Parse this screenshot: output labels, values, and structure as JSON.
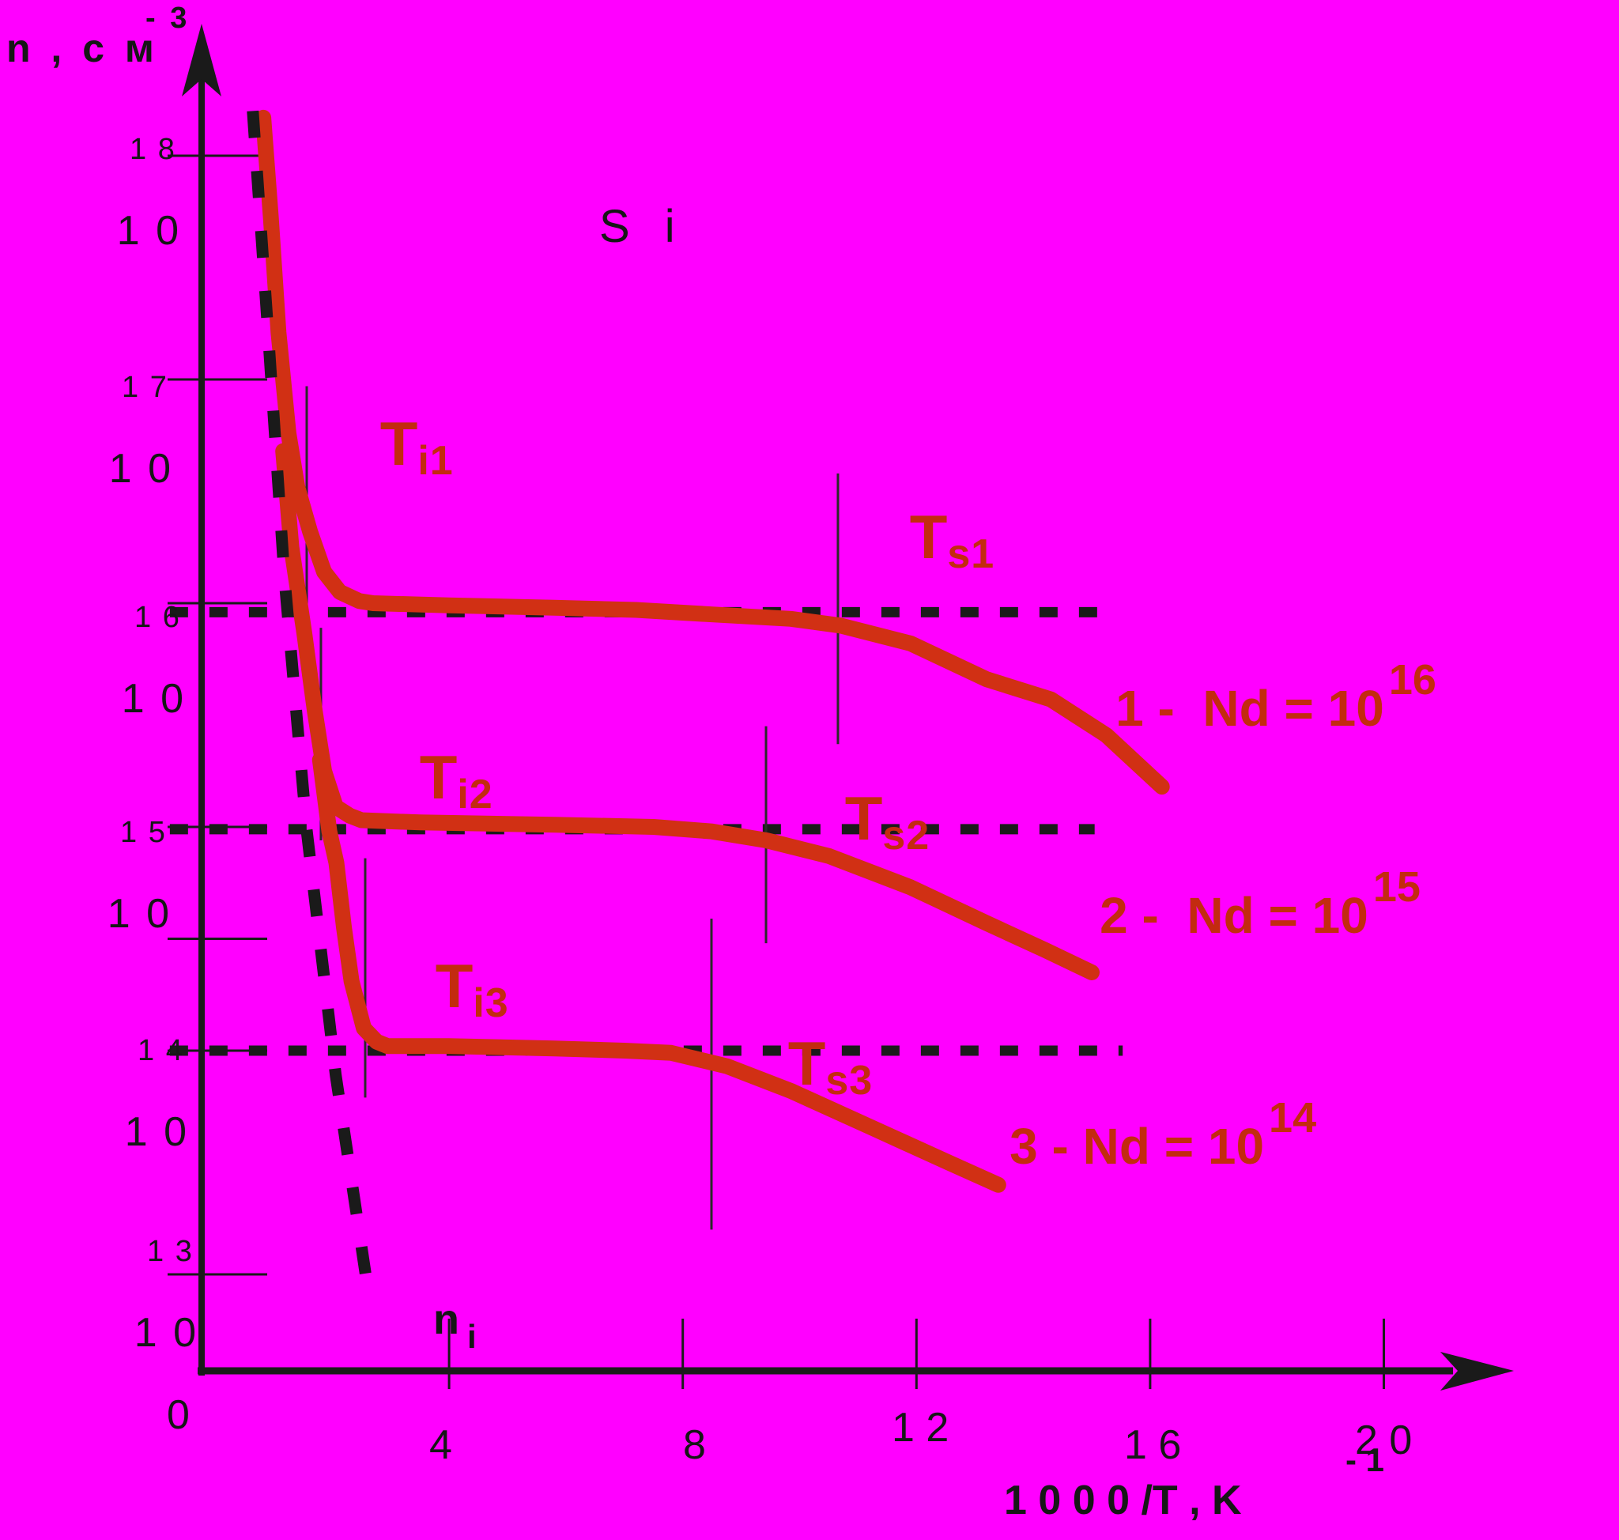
{
  "colors": {
    "background": "#ff00ff",
    "curve_red": "#d13014",
    "annotation_red": "#c32b10",
    "axis_black": "#1a1a1a"
  },
  "title": {
    "text": "S i"
  },
  "y_axis": {
    "title": {
      "main": "n , с м",
      "sup": "- 3"
    },
    "ticks": [
      {
        "base": "1 0",
        "sup": "1 8"
      },
      {
        "base": "1 0",
        "sup": "1 7"
      },
      {
        "base": "1 0",
        "sup": "1 6"
      },
      {
        "base": "1 0",
        "sup": "1 5"
      },
      {
        "base": "1 0",
        "sup": "1 4"
      },
      {
        "base": "1 0",
        "sup": "1 3"
      }
    ]
  },
  "x_axis": {
    "title": {
      "main": "1 0 0 0 /T , K",
      "sup": "- 1"
    },
    "origin": "0",
    "ticks": [
      "4",
      "8",
      "1 2",
      "1 6",
      "2 0"
    ]
  },
  "intrinsic_label": {
    "main": "n",
    "sub": "i"
  },
  "markers": [
    {
      "main": "T",
      "sub": "i1"
    },
    {
      "main": "T",
      "sub": "i2"
    },
    {
      "main": "T",
      "sub": "i3"
    },
    {
      "main": "T",
      "sub": "s1"
    },
    {
      "main": "T",
      "sub": "s2"
    },
    {
      "main": "T",
      "sub": "s3"
    }
  ],
  "legend": [
    {
      "text": "1 -  Nd = 10",
      "sup": "16"
    },
    {
      "text": "2 -  Nd = 10",
      "sup": "15"
    },
    {
      "text": "3 - Nd = 10",
      "sup": "14"
    }
  ],
  "chart_data": {
    "type": "line",
    "title": "Si",
    "xlabel": "1000/T, K^-1",
    "ylabel": "n, cm^-3",
    "x_ticks": [
      0,
      4,
      8,
      12,
      16,
      20
    ],
    "y_ticks_log10": [
      18,
      17,
      16,
      15,
      14,
      13
    ],
    "y_minor_ticks_log10": [
      14.5
    ],
    "x_tick_units": [
      4,
      8,
      12,
      16,
      20
    ],
    "y_tick_levels": [
      18,
      17,
      16,
      15,
      14.5,
      14,
      13
    ],
    "legend_position": "right of each curve",
    "grid": "dashed horizontal guide lines at donor concentration levels",
    "series": [
      {
        "name": "1 - Nd = 10^16 cm^-3",
        "kind": "curve",
        "width": 20,
        "points": [
          [
            0.82,
            18.17
          ],
          [
            0.95,
            17.72
          ],
          [
            1.08,
            17.21
          ],
          [
            1.25,
            16.76
          ],
          [
            1.4,
            16.52
          ],
          [
            1.62,
            16.32
          ],
          [
            1.86,
            16.14
          ],
          [
            2.13,
            16.05
          ],
          [
            2.46,
            16.01
          ],
          [
            2.7,
            16.0
          ],
          [
            4.0,
            15.99
          ],
          [
            5.8,
            15.98
          ],
          [
            7.2,
            15.97
          ],
          [
            8.5,
            15.95
          ],
          [
            9.85,
            15.93
          ],
          [
            10.7,
            15.9
          ],
          [
            11.9,
            15.82
          ],
          [
            13.2,
            15.66
          ],
          [
            14.3,
            15.57
          ],
          [
            15.25,
            15.41
          ],
          [
            16.2,
            15.18
          ]
        ]
      },
      {
        "name": "2 - Nd = 10^15 cm^-3",
        "kind": "curve",
        "width": 20,
        "points": [
          [
            1.16,
            16.68
          ],
          [
            1.3,
            16.25
          ],
          [
            1.52,
            15.87
          ],
          [
            1.7,
            15.52
          ],
          [
            1.86,
            15.25
          ],
          [
            2.06,
            15.09
          ],
          [
            2.3,
            15.05
          ],
          [
            2.5,
            15.03
          ],
          [
            3.5,
            15.02
          ],
          [
            5.8,
            15.01
          ],
          [
            7.5,
            15.0
          ],
          [
            8.5,
            14.98
          ],
          [
            9.43,
            14.94
          ],
          [
            10.5,
            14.87
          ],
          [
            11.9,
            14.73
          ],
          [
            13.2,
            14.57
          ],
          [
            14.2,
            14.45
          ],
          [
            15.0,
            14.35
          ]
        ]
      },
      {
        "name": "3 - Nd = 10^14 cm^-3",
        "kind": "curve",
        "width": 20,
        "points": [
          [
            1.79,
            15.3
          ],
          [
            1.95,
            14.98
          ],
          [
            2.07,
            14.84
          ],
          [
            2.2,
            14.55
          ],
          [
            2.33,
            14.31
          ],
          [
            2.54,
            14.1
          ],
          [
            2.76,
            14.04
          ],
          [
            2.95,
            14.02
          ],
          [
            4.0,
            14.02
          ],
          [
            5.8,
            14.01
          ],
          [
            7.0,
            14.0
          ],
          [
            7.8,
            13.99
          ],
          [
            8.76,
            13.93
          ],
          [
            9.85,
            13.82
          ],
          [
            11.2,
            13.66
          ],
          [
            12.55,
            13.5
          ],
          [
            13.4,
            13.4
          ]
        ]
      },
      {
        "name": "n_i intrinsic concentration",
        "kind": "dashed",
        "width": 15,
        "dash": "34 42",
        "points": [
          [
            0.64,
            18.2
          ],
          [
            0.91,
            17.18
          ],
          [
            1.18,
            16.12
          ],
          [
            1.56,
            14.99
          ],
          [
            2.06,
            13.89
          ],
          [
            2.64,
            12.88
          ]
        ]
      }
    ],
    "guides": [
      {
        "level": "1e16",
        "y": 15.96,
        "x1": -0.78,
        "x2": 15.2
      },
      {
        "level": "1e15",
        "y": 14.99,
        "x1": -0.78,
        "x2": 15.05
      },
      {
        "level": "1e14",
        "y": 14.0,
        "x1": -0.78,
        "x2": 15.53
      }
    ],
    "marker_lines": [
      {
        "label": "Ti1",
        "x": 1.563,
        "y1": 16.97,
        "y2": 15.9
      },
      {
        "label": "Ti2",
        "x": 1.806,
        "y1": 15.89,
        "y2": 14.94
      },
      {
        "label": "Ti3",
        "x": 2.564,
        "y1": 14.86,
        "y2": 13.79
      },
      {
        "label": "Ts1",
        "x": 10.656,
        "y1": 16.58,
        "y2": 15.37
      },
      {
        "label": "Ts2",
        "x": 9.425,
        "y1": 15.45,
        "y2": 14.48
      },
      {
        "label": "Ts3",
        "x": 8.491,
        "y1": 14.59,
        "y2": 13.2
      }
    ],
    "annotations": [
      "Ti1",
      "Ti2",
      "Ti3",
      "Ts1",
      "Ts2",
      "Ts3",
      "ni"
    ]
  }
}
